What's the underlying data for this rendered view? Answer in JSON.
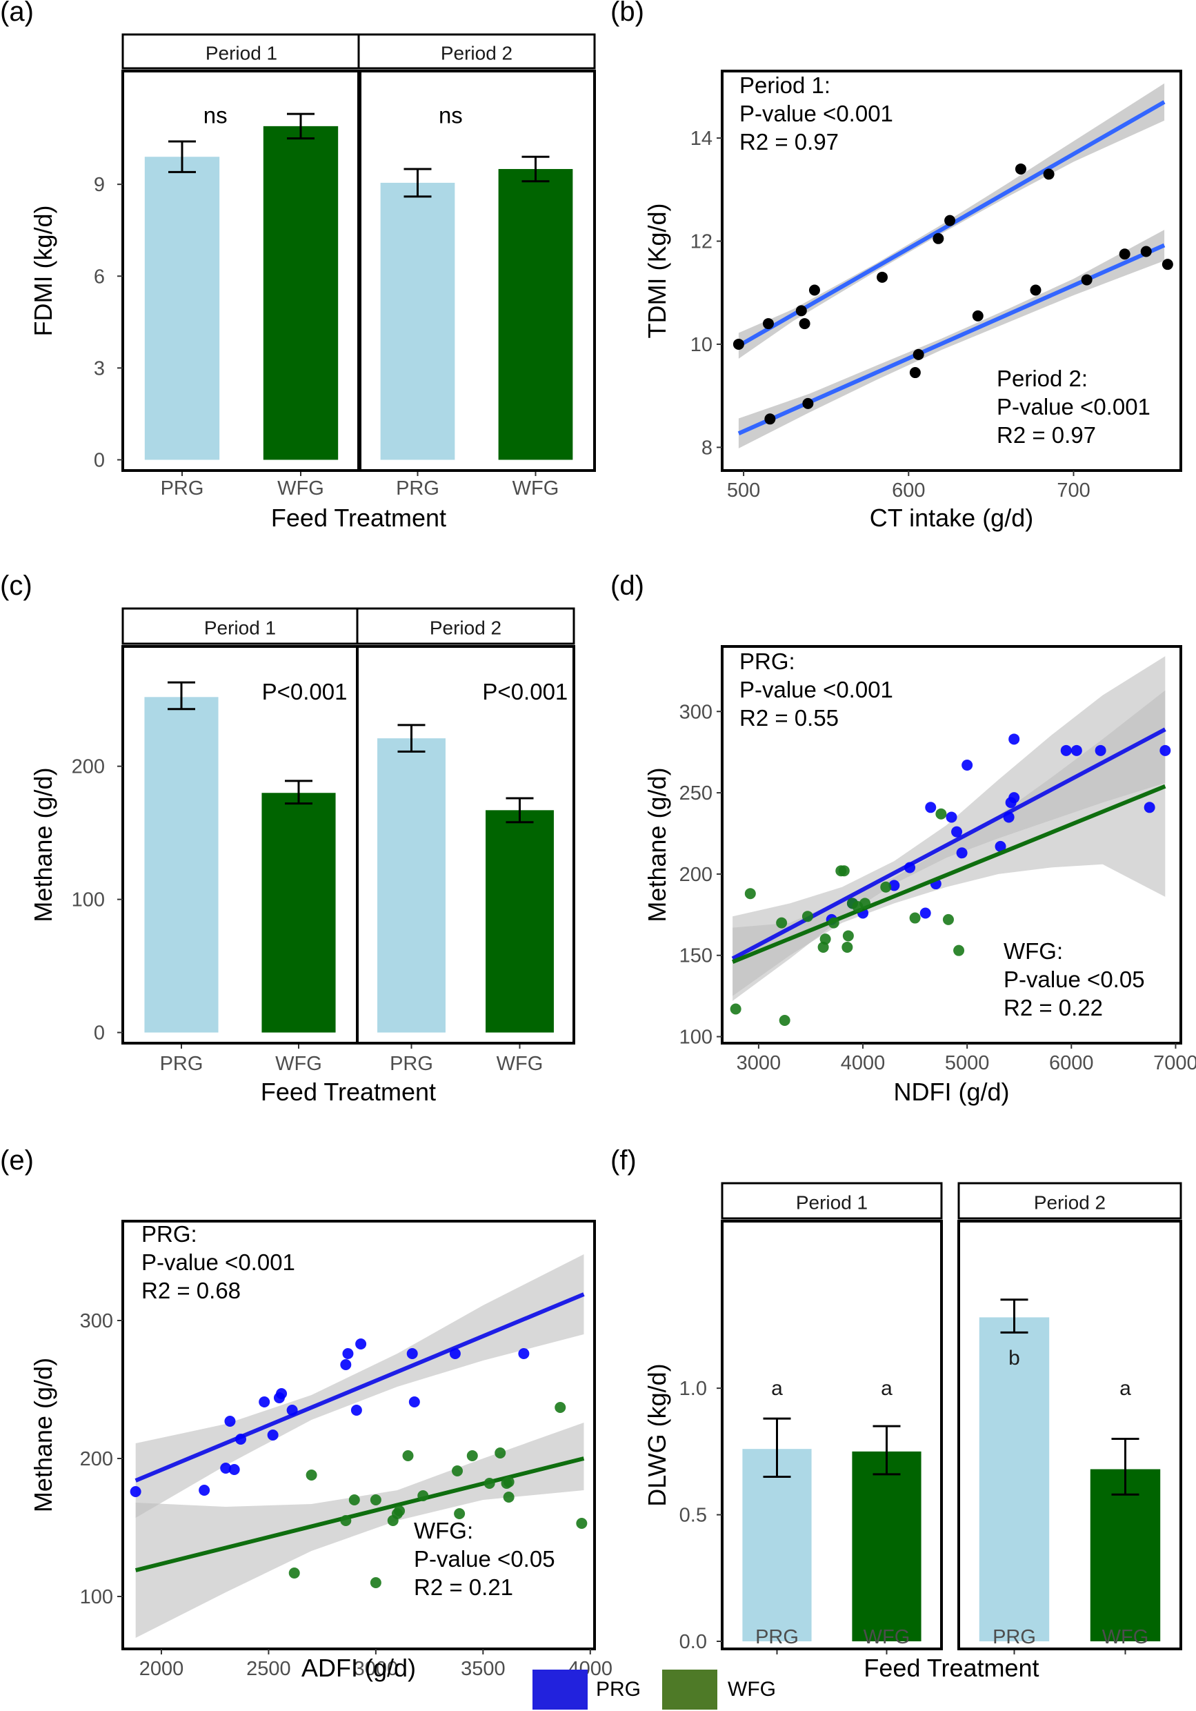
{
  "colors": {
    "prg_bar": "#add8e6",
    "wfg_bar": "#006400",
    "fit_line": "#3366ff",
    "ribbon": "#bebebe",
    "prg_point": "#0000ff",
    "wfg_point": "#1a7a1a",
    "prg_line": "#1e1ee6",
    "wfg_line": "#0f6e0f",
    "legend_prg": "#2222dd",
    "legend_wfg": "#4e7a27",
    "point_black": "#000000"
  },
  "legend": {
    "items": [
      {
        "label": "PRG",
        "color": "#2222dd"
      },
      {
        "label": "WFG",
        "color": "#4e7a27"
      }
    ]
  },
  "chart_data": [
    {
      "panel": "(a)",
      "type": "bar",
      "title": "",
      "xlabel": "Feed Treatment",
      "ylabel": "FDMI (kg/d)",
      "ylim": [
        -0.35,
        12.7
      ],
      "yticks": [
        0,
        3,
        6,
        9
      ],
      "facets": [
        {
          "label": "Period 1",
          "annotation": "ns",
          "annotation_y": 11.0,
          "bars": [
            {
              "category": "PRG",
              "value": 9.9,
              "err_low": 9.4,
              "err_high": 10.4,
              "letter": ""
            },
            {
              "category": "WFG",
              "value": 10.9,
              "err_low": 10.5,
              "err_high": 11.3,
              "letter": ""
            }
          ]
        },
        {
          "label": "Period 2",
          "annotation": "ns",
          "annotation_y": 11.0,
          "bars": [
            {
              "category": "PRG",
              "value": 9.05,
              "err_low": 8.6,
              "err_high": 9.5,
              "letter": ""
            },
            {
              "category": "WFG",
              "value": 9.5,
              "err_low": 9.1,
              "err_high": 9.9,
              "letter": ""
            }
          ]
        }
      ]
    },
    {
      "panel": "(b)",
      "type": "scatter",
      "title": "",
      "xlabel": "CT intake (g/d)",
      "ylabel": "TDMI (Kg/d)",
      "xlim": [
        487,
        765
      ],
      "ylim": [
        7.55,
        15.3
      ],
      "xticks": [
        500,
        600,
        700
      ],
      "yticks": [
        8,
        10,
        12,
        14
      ],
      "series": [
        {
          "name": "Period 1",
          "x": [
            497,
            515,
            535,
            537,
            543,
            584,
            618,
            625,
            668,
            685
          ],
          "y": [
            10.0,
            10.4,
            10.65,
            10.4,
            11.05,
            11.3,
            12.05,
            12.4,
            13.4,
            13.3
          ],
          "fit": {
            "x": [
              497,
              755
            ],
            "y": [
              9.97,
              14.7
            ],
            "ci": [
              [
                497,
                9.72,
                10.22
              ],
              [
                530,
                10.45,
                10.68
              ],
              [
                580,
                11.41,
                11.56
              ],
              [
                620,
                12.15,
                12.32
              ],
              [
                660,
                12.86,
                13.12
              ],
              [
                700,
                13.54,
                13.94
              ],
              [
                755,
                14.34,
                15.06
              ]
            ]
          },
          "stats": [
            "Period 1:",
            "P-value <0.001",
            "R2 = 0.97"
          ]
        },
        {
          "name": "Period 2",
          "x": [
            516,
            539,
            604,
            606,
            642,
            677,
            708,
            731,
            744,
            757
          ],
          "y": [
            8.55,
            8.85,
            9.45,
            9.8,
            10.55,
            11.05,
            11.25,
            11.75,
            11.8,
            11.55
          ],
          "fit": {
            "x": [
              497,
              755
            ],
            "y": [
              8.27,
              11.92
            ],
            "ci": [
              [
                497,
                7.98,
                8.56
              ],
              [
                540,
                8.68,
                9.04
              ],
              [
                580,
                9.3,
                9.58
              ],
              [
                620,
                9.89,
                10.11
              ],
              [
                660,
                10.42,
                10.68
              ],
              [
                700,
                10.95,
                11.27
              ],
              [
                755,
                11.62,
                12.22
              ]
            ]
          },
          "stats": [
            "Period 2:",
            "P-value <0.001",
            "R2 = 0.97"
          ]
        }
      ]
    },
    {
      "panel": "(c)",
      "type": "bar",
      "title": "",
      "xlabel": "Feed Treatment",
      "ylabel": "Methane (g/d)",
      "ylim": [
        -8,
        290
      ],
      "yticks": [
        0,
        100,
        200
      ],
      "facets": [
        {
          "label": "Period 1",
          "annotation": "P<0.001",
          "annotation_y": 250,
          "bars": [
            {
              "category": "PRG",
              "value": 252,
              "err_low": 243,
              "err_high": 263,
              "letter": ""
            },
            {
              "category": "WFG",
              "value": 180,
              "err_low": 172,
              "err_high": 189,
              "letter": ""
            }
          ]
        },
        {
          "label": "Period 2",
          "annotation": "P<0.001",
          "annotation_y": 250,
          "bars": [
            {
              "category": "PRG",
              "value": 221,
              "err_low": 211,
              "err_high": 231,
              "letter": ""
            },
            {
              "category": "WFG",
              "value": 167,
              "err_low": 158,
              "err_high": 176,
              "letter": ""
            }
          ]
        }
      ]
    },
    {
      "panel": "(d)",
      "type": "scatter",
      "title": "",
      "xlabel": "NDFI (g/d)",
      "ylabel": "Methane (g/d)",
      "xlim": [
        2650,
        7050
      ],
      "ylim": [
        96,
        340
      ],
      "xticks": [
        3000,
        4000,
        5000,
        6000,
        7000
      ],
      "yticks": [
        100,
        150,
        200,
        250,
        300
      ],
      "series": [
        {
          "name": "PRG",
          "x": [
            3700,
            3900,
            4000,
            4300,
            4450,
            4600,
            4650,
            4700,
            4850,
            4900,
            4950,
            5000,
            5320,
            5400,
            5450,
            5450,
            5950,
            6050,
            6280,
            6750,
            6900,
            5420
          ],
          "y": [
            172,
            182,
            176,
            193,
            204,
            176,
            241,
            194,
            235,
            226,
            213,
            267,
            217,
            235,
            247,
            283,
            276,
            276,
            276,
            241,
            276,
            244
          ],
          "fit": {
            "x": [
              2750,
              6900
            ],
            "y": [
              148,
              289
            ],
            "ci": [
              [
                2750,
                122,
                174
              ],
              [
                3300,
                148,
                182
              ],
              [
                3800,
                173,
                192
              ],
              [
                4300,
                194,
                208
              ],
              [
                4800,
                210,
                230
              ],
              [
                5300,
                222,
                258
              ],
              [
                5800,
                233,
                285
              ],
              [
                6300,
                244,
                310
              ],
              [
                6900,
                256,
                334
              ]
            ]
          },
          "stats": [
            "PRG:",
            "P-value <0.001",
            "R2 = 0.55"
          ]
        },
        {
          "name": "WFG",
          "x": [
            2780,
            2920,
            3220,
            3250,
            3470,
            3620,
            3640,
            3720,
            3790,
            3820,
            3850,
            3860,
            3900,
            3950,
            4020,
            4220,
            4500,
            4750,
            4820,
            4920
          ],
          "y": [
            117,
            188,
            170,
            110,
            174,
            155,
            160,
            170,
            202,
            202,
            155,
            162,
            182,
            180,
            182,
            192,
            173,
            237,
            172,
            153
          ],
          "fit": {
            "x": [
              2750,
              6900
            ],
            "y": [
              146,
              254
            ],
            "ci": [
              [
                2750,
                125,
                167
              ],
              [
                3300,
                150,
                170
              ],
              [
                3800,
                170,
                184
              ],
              [
                4300,
                182,
                198
              ],
              [
                4800,
                192,
                216
              ],
              [
                5300,
                200,
                236
              ],
              [
                5800,
                204,
                259
              ],
              [
                6300,
                206,
                283
              ],
              [
                6900,
                186,
                313
              ]
            ]
          },
          "stats": [
            "WFG:",
            "P-value <0.05",
            "R2 = 0.22"
          ]
        }
      ]
    },
    {
      "panel": "(e)",
      "type": "scatter",
      "title": "",
      "xlabel": "ADFI (g/d)",
      "ylabel": "Methane (g/d)",
      "xlim": [
        1820,
        4020
      ],
      "ylim": [
        62,
        372
      ],
      "xticks": [
        2000,
        2500,
        3000,
        3500,
        4000
      ],
      "yticks": [
        100,
        200,
        300
      ],
      "series": [
        {
          "name": "PRG",
          "x": [
            1880,
            2200,
            2300,
            2320,
            2340,
            2370,
            2480,
            2520,
            2550,
            2560,
            2610,
            2860,
            2870,
            2910,
            2930,
            3170,
            3180,
            3370,
            3690
          ],
          "y": [
            176,
            177,
            193,
            227,
            192,
            214,
            241,
            217,
            244,
            247,
            235,
            268,
            276,
            235,
            283,
            276,
            241,
            276,
            276
          ],
          "fit": {
            "x": [
              1880,
              3970
            ],
            "y": [
              184,
              319
            ],
            "ci": [
              [
                1880,
                157,
                211
              ],
              [
                2300,
                195,
                225
              ],
              [
                2700,
                228,
                246
              ],
              [
                3100,
                252,
                276
              ],
              [
                3500,
                271,
                311
              ],
              [
                3970,
                290,
                348
              ]
            ]
          },
          "stats": [
            "PRG:",
            "P-value <0.001",
            "R2 = 0.68"
          ]
        },
        {
          "name": "WFG",
          "x": [
            2620,
            2700,
            2860,
            2900,
            3000,
            3000,
            3080,
            3100,
            3110,
            3150,
            3220,
            3380,
            3390,
            3450,
            3530,
            3580,
            3610,
            3620,
            3620,
            3860,
            3960
          ],
          "y": [
            117,
            188,
            155,
            170,
            110,
            170,
            155,
            160,
            162,
            202,
            173,
            191,
            160,
            202,
            182,
            204,
            182,
            172,
            183,
            237,
            153
          ],
          "fit": {
            "x": [
              1880,
              3970
            ],
            "y": [
              119,
              200
            ],
            "ci": [
              [
                1880,
                70,
                168
              ],
              [
                2300,
                103,
                165
              ],
              [
                2700,
                133,
                167
              ],
              [
                3100,
                155,
                177
              ],
              [
                3500,
                170,
                200
              ],
              [
                3970,
                177,
                226
              ]
            ]
          },
          "stats": [
            "WFG:",
            "P-value <0.05",
            "R2 = 0.21"
          ]
        }
      ]
    },
    {
      "panel": "(f)",
      "type": "bar",
      "title": "",
      "xlabel": "Feed Treatment",
      "ylabel": "DLWG (kg/d)",
      "ylim": [
        -0.03,
        1.66
      ],
      "yticks": [
        0.0,
        0.5,
        1.0
      ],
      "ytick_labels": [
        "0.0",
        "0.5",
        "1.0"
      ],
      "facets": [
        {
          "label": "Period 1",
          "annotation": "",
          "bars": [
            {
              "category": "PRG",
              "value": 0.76,
              "err_low": 0.65,
              "err_high": 0.88,
              "letter": "a",
              "letter_y": 1.0
            },
            {
              "category": "WFG",
              "value": 0.75,
              "err_low": 0.66,
              "err_high": 0.85,
              "letter": "a",
              "letter_y": 1.0
            }
          ]
        },
        {
          "label": "Period 2",
          "annotation": "",
          "bars": [
            {
              "category": "PRG",
              "value": 1.28,
              "err_low": 1.22,
              "err_high": 1.35,
              "letter": "b",
              "letter_y": 1.12
            },
            {
              "category": "WFG",
              "value": 0.68,
              "err_low": 0.58,
              "err_high": 0.8,
              "letter": "a",
              "letter_y": 1.0
            }
          ]
        }
      ]
    }
  ]
}
